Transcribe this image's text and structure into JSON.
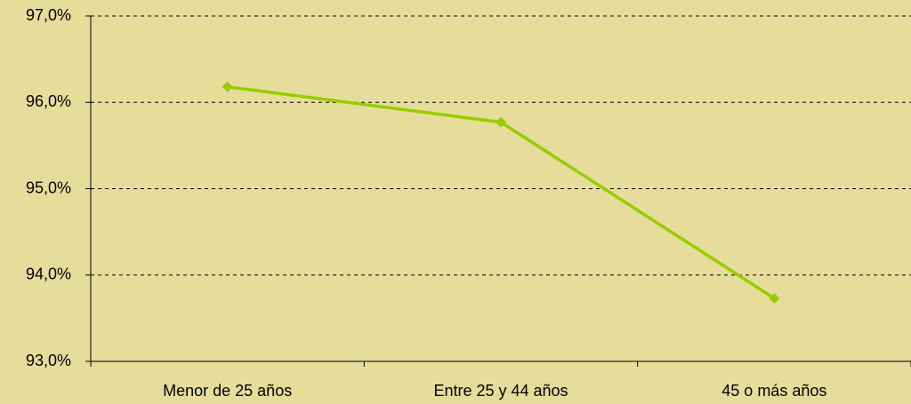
{
  "chart_data": {
    "type": "line",
    "categories": [
      "Menor de 25 años",
      "Entre 25 y 44 años",
      "45 o más años"
    ],
    "series": [
      {
        "name": "Serie",
        "color": "#99cc00",
        "values": [
          96.18,
          95.77,
          93.73
        ]
      }
    ],
    "ylim": [
      93,
      97
    ],
    "yticks": [
      {
        "value": 93,
        "label": "93,0%"
      },
      {
        "value": 94,
        "label": "94,0%"
      },
      {
        "value": 95,
        "label": "95,0%"
      },
      {
        "value": 96,
        "label": "96,0%"
      },
      {
        "value": 97,
        "label": "97,0%"
      }
    ],
    "grid": true
  }
}
